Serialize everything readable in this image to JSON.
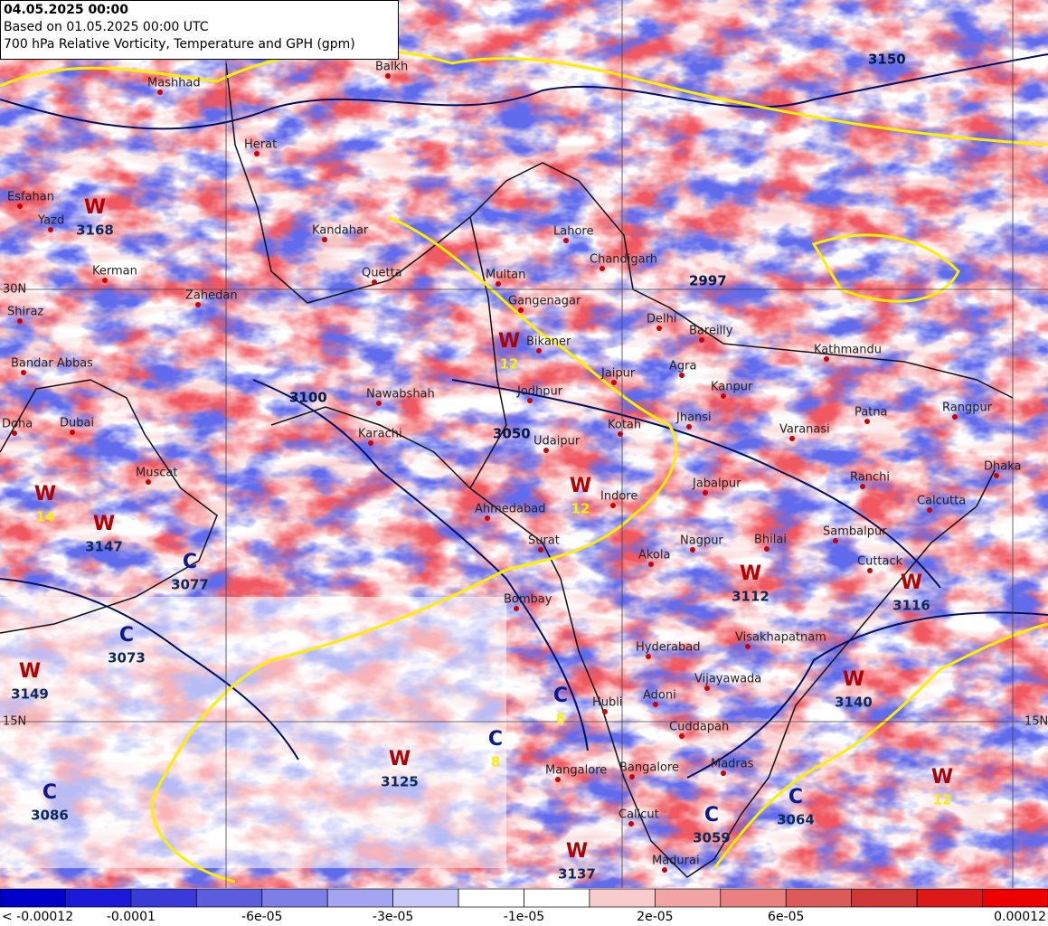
{
  "header": {
    "valid_time": "04.05.2025 00:00",
    "based_on": "Based on 01.05.2025 00:00 UTC",
    "title": "700 hPa Relative Vorticity, Temperature and GPH (gpm)"
  },
  "grid_labels": [
    "30N",
    "15N"
  ],
  "cities": [
    "Balkh",
    "Mashhad",
    "Herat",
    "Esfahan",
    "Yazd",
    "Kerman",
    "Zahedan",
    "Shiraz",
    "Bandar Abbas",
    "Doha",
    "Dubai",
    "Muscat",
    "Kandahar",
    "Quetta",
    "Multan",
    "Lahore",
    "Chandigarh",
    "Gangenagar",
    "Delhi",
    "Bareilly",
    "Bikaner",
    "Jaipur",
    "Agra",
    "Kanpur",
    "Jodhpur",
    "Nawabshah",
    "Karachi",
    "Kotah",
    "Jhansi",
    "Varanasi",
    "Patna",
    "Kathmandu",
    "Rangpur",
    "Dhaka",
    "Udaipur",
    "Ahmedabad",
    "Indore",
    "Jabalpur",
    "Ranchi",
    "Calcutta",
    "Surat",
    "Nagpur",
    "Bhilai",
    "Sambalpur",
    "Akola",
    "Cuttack",
    "Bombay",
    "Hyderabad",
    "Visakhapatnam",
    "Vijayawada",
    "Hubli",
    "Adoni",
    "Cuddapah",
    "Mangalore",
    "Bangalore",
    "Madras",
    "Calicut",
    "Madurai"
  ],
  "systems": [
    {
      "letter": "W",
      "gph": 3168
    },
    {
      "letter": "W",
      "temp": 12
    },
    {
      "letter": "W",
      "temp": 14
    },
    {
      "letter": "W",
      "gph": 3147
    },
    {
      "letter": "C",
      "gph": 3077
    },
    {
      "letter": "C",
      "gph": 3073
    },
    {
      "letter": "W",
      "gph": 3149
    },
    {
      "letter": "W",
      "temp": 12
    },
    {
      "letter": "W",
      "gph": 3112
    },
    {
      "letter": "W",
      "gph": 3116
    },
    {
      "letter": "W",
      "gph": 3140
    },
    {
      "letter": "C",
      "temp": 8
    },
    {
      "letter": "C",
      "temp": 8
    },
    {
      "letter": "W",
      "gph": 3125
    },
    {
      "letter": "C",
      "gph": 3064
    },
    {
      "letter": "W",
      "temp": 12
    },
    {
      "letter": "C",
      "gph": 3059
    },
    {
      "letter": "W",
      "gph": 3137
    },
    {
      "letter": "C",
      "gph": 3086
    }
  ],
  "contour_labels": [
    2997,
    3100,
    3050,
    3150
  ],
  "colorbar": {
    "colors": [
      "#0000c8",
      "#1a1ad8",
      "#3a3ad8",
      "#5c5cde",
      "#7e7ee8",
      "#a4a4f2",
      "#c8c8f8",
      "#ffffff",
      "#ffffff",
      "#f8cccc",
      "#f2a4a4",
      "#ea8080",
      "#dd5a5a",
      "#d03838",
      "#dc1818",
      "#ee0000"
    ],
    "labels": [
      "< -0.00012",
      "-0.0001",
      "-6e-05",
      "-3e-05",
      "-1e-05",
      "2e-05",
      "6e-05",
      "0.00012"
    ]
  }
}
